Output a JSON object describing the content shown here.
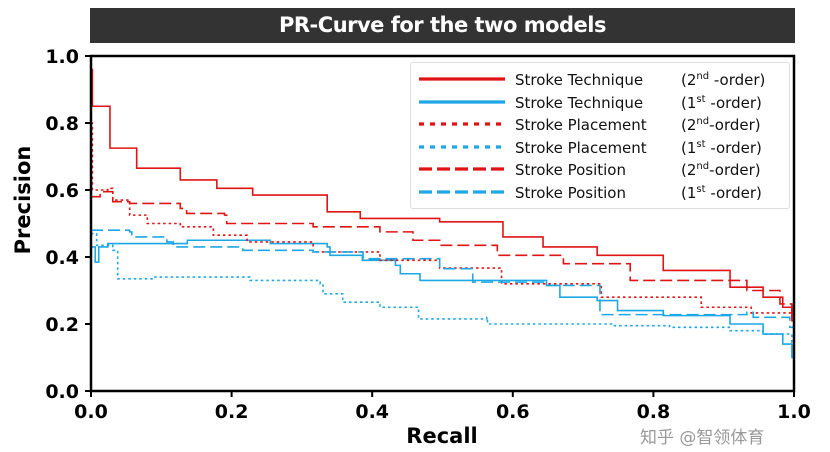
{
  "chart_data": {
    "type": "line",
    "title": "PR-Curve for the two models",
    "xlabel": "Recall",
    "ylabel": "Precision",
    "xlim": [
      0,
      1
    ],
    "ylim": [
      0,
      1
    ],
    "xticks": [
      "0.0",
      "0.2",
      "0.4",
      "0.6",
      "0.8",
      "1.0"
    ],
    "yticks": [
      "0.0",
      "0.2",
      "0.4",
      "0.6",
      "0.8",
      "1.0"
    ],
    "grid": false,
    "legend_position": "top-right",
    "colors": {
      "second_order": "#e01414",
      "first_order": "#1ea7e6"
    },
    "series": [
      {
        "name": "Stroke Technique",
        "order_prefix": "(2",
        "order_sup": "nd",
        "order_suffix": " -order)",
        "color": "#e01414",
        "style": "solid",
        "x": [
          0,
          0.001,
          0.002,
          0.027,
          0.065,
          0.127,
          0.179,
          0.23,
          0.336,
          0.383,
          0.496,
          0.586,
          0.643,
          0.72,
          0.814,
          0.909,
          0.956,
          0.984,
          0.997,
          1.0
        ],
        "y": [
          0.95,
          0.96,
          0.85,
          0.725,
          0.665,
          0.63,
          0.605,
          0.585,
          0.535,
          0.515,
          0.505,
          0.46,
          0.43,
          0.405,
          0.36,
          0.31,
          0.28,
          0.25,
          0.21,
          0.18
        ]
      },
      {
        "name": "Stroke Technique",
        "order_prefix": "(1",
        "order_sup": "st",
        "order_suffix": " -order)",
        "color": "#1ea7e6",
        "style": "solid",
        "x": [
          0,
          0.005,
          0.006,
          0.01,
          0.011,
          0.024,
          0.136,
          0.137,
          0.255,
          0.336,
          0.34,
          0.386,
          0.433,
          0.44,
          0.468,
          0.484,
          0.648,
          0.667,
          0.72,
          0.749,
          0.814,
          0.909,
          0.956,
          0.984,
          0.997,
          1.0
        ],
        "y": [
          0.43,
          0.43,
          0.385,
          0.385,
          0.43,
          0.44,
          0.44,
          0.45,
          0.44,
          0.43,
          0.405,
          0.39,
          0.375,
          0.35,
          0.33,
          0.33,
          0.315,
          0.28,
          0.27,
          0.24,
          0.225,
          0.2,
          0.17,
          0.14,
          0.1,
          0.09
        ]
      },
      {
        "name": "Stroke Placement",
        "order_prefix": "(2",
        "order_sup": "nd",
        "order_suffix": "-order)",
        "color": "#e01414",
        "style": "dotted",
        "x": [
          0,
          0.002,
          0.013,
          0.024,
          0.031,
          0.055,
          0.08,
          0.127,
          0.174,
          0.222,
          0.316,
          0.411,
          0.496,
          0.584,
          0.726,
          0.868,
          0.939,
          0.997,
          1.0
        ],
        "y": [
          0.8,
          0.6,
          0.6,
          0.605,
          0.57,
          0.525,
          0.5,
          0.49,
          0.465,
          0.445,
          0.415,
          0.39,
          0.367,
          0.32,
          0.28,
          0.25,
          0.233,
          0.21,
          0.19
        ]
      },
      {
        "name": "Stroke Placement",
        "order_prefix": "(1",
        "order_sup": "st",
        "order_suffix": " -order)",
        "color": "#1ea7e6",
        "style": "dotted",
        "x": [
          0,
          0.008,
          0.031,
          0.038,
          0.088,
          0.159,
          0.226,
          0.326,
          0.33,
          0.358,
          0.411,
          0.464,
          0.466,
          0.563,
          0.564,
          0.743,
          0.823,
          0.909,
          0.956,
          0.997,
          1.0
        ],
        "y": [
          0.47,
          0.435,
          0.42,
          0.335,
          0.34,
          0.34,
          0.33,
          0.32,
          0.29,
          0.265,
          0.25,
          0.24,
          0.215,
          0.22,
          0.2,
          0.195,
          0.19,
          0.18,
          0.17,
          0.145,
          0.14
        ]
      },
      {
        "name": "Stroke Position",
        "order_prefix": "(2",
        "order_sup": "nd",
        "order_suffix": "-order)",
        "color": "#e01414",
        "style": "dashed",
        "x": [
          0,
          0.013,
          0.031,
          0.055,
          0.127,
          0.136,
          0.19,
          0.193,
          0.316,
          0.411,
          0.458,
          0.496,
          0.578,
          0.672,
          0.767,
          0.933,
          0.98,
          0.997,
          1.0
        ],
        "y": [
          0.58,
          0.595,
          0.565,
          0.56,
          0.545,
          0.53,
          0.525,
          0.5,
          0.49,
          0.475,
          0.45,
          0.435,
          0.405,
          0.38,
          0.33,
          0.3,
          0.26,
          0.235,
          0.2
        ]
      },
      {
        "name": "Stroke Position",
        "order_prefix": "(1",
        "order_sup": "st",
        "order_suffix": " -order)",
        "color": "#1ea7e6",
        "style": "dashed",
        "x": [
          0,
          0.055,
          0.058,
          0.108,
          0.117,
          0.216,
          0.316,
          0.387,
          0.496,
          0.543,
          0.648,
          0.708,
          0.724,
          0.933,
          0.942,
          0.994,
          1.0
        ],
        "y": [
          0.48,
          0.475,
          0.46,
          0.445,
          0.43,
          0.42,
          0.415,
          0.395,
          0.365,
          0.325,
          0.315,
          0.315,
          0.228,
          0.235,
          0.22,
          0.19,
          0.18
        ]
      }
    ]
  },
  "watermark": "知乎 @智领体育"
}
